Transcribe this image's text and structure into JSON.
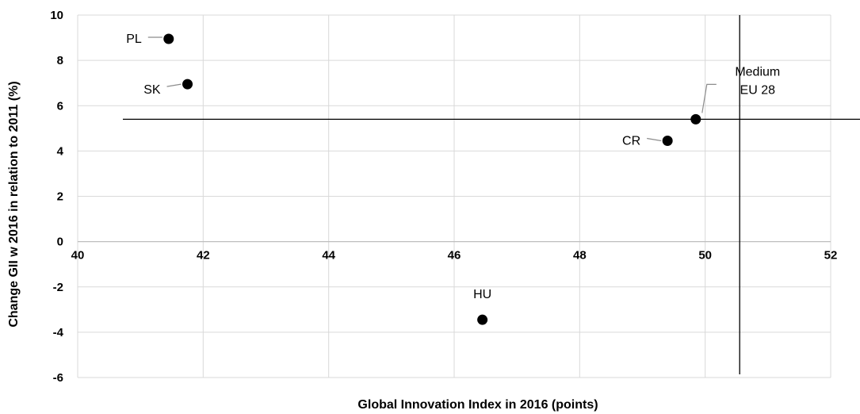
{
  "chart_data": {
    "type": "scatter",
    "xlabel": "Global Innovation Index in 2016 (points)",
    "ylabel": "Change GII w 2016  in relation to 2011 (%)",
    "xlim": [
      40,
      52
    ],
    "ylim": [
      -6,
      10
    ],
    "x_ticks": [
      40,
      42,
      44,
      46,
      48,
      50,
      52
    ],
    "y_ticks": [
      -6,
      -4,
      -2,
      0,
      2,
      4,
      6,
      8,
      10
    ],
    "grid": true,
    "points": [
      {
        "label": "PL",
        "x": 41.45,
        "y": 8.95
      },
      {
        "label": "SK",
        "x": 41.75,
        "y": 6.95
      },
      {
        "label": "CR",
        "x": 49.4,
        "y": 4.45
      },
      {
        "label": "Medium EU 28",
        "label_lines": [
          "Medium",
          "EU 28"
        ],
        "x": 49.85,
        "y": 5.4
      },
      {
        "label": "HU",
        "x": 46.45,
        "y": -3.45
      }
    ],
    "reference_lines": {
      "x": 50.55,
      "y": 5.4
    }
  }
}
